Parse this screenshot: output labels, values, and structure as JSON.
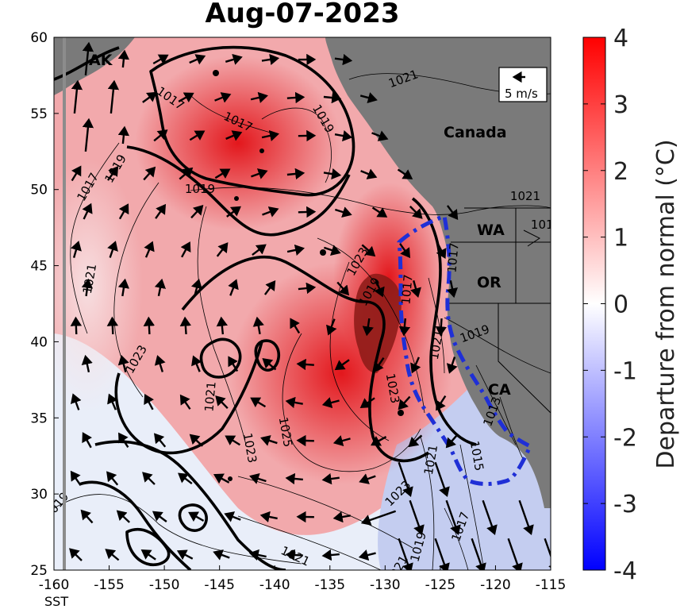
{
  "title": "Aug-07-2023",
  "colors": {
    "land": "#7a7a7a",
    "warm": "#e8363a",
    "hot": "#e3171c",
    "peak": "#8a1a16",
    "pale": "#f6d4d6",
    "cool": "#c9d0f0",
    "dash": "#1f2fd6"
  },
  "map": {
    "lon_range": [
      -160,
      -115
    ],
    "lat_range": [
      25,
      60
    ],
    "lon_ticks": [
      "-160",
      "-155",
      "-150",
      "-145",
      "-140",
      "-135",
      "-130",
      "-125",
      "-120",
      "-115"
    ],
    "lat_ticks": [
      "25",
      "30",
      "35",
      "40",
      "45",
      "50",
      "55",
      "60"
    ],
    "region_labels": [
      "AK",
      "Canada",
      "WA",
      "OR",
      "CA"
    ],
    "isobar_labels": [
      "1021",
      "1017",
      "1017",
      "1019",
      "1017",
      "1019",
      "1021",
      "1019",
      "1019",
      "1021",
      "1023",
      "1023",
      "1017",
      "1021",
      "1019",
      "1017",
      "1019",
      "1023",
      "1021",
      "1025",
      "1023",
      "1021",
      "1023",
      "1019",
      "1021",
      "1015",
      "1017",
      "1019",
      "1021",
      "1013"
    ],
    "wind_scale_label": "5 m/s"
  },
  "colorbar": {
    "label": "Departure from normal (°C)",
    "ticks": [
      "4",
      "3",
      "2",
      "1",
      "0",
      "-1",
      "-2",
      "-3",
      "-4"
    ],
    "range": [
      -4,
      4
    ]
  },
  "caption_fragment": "SST"
}
